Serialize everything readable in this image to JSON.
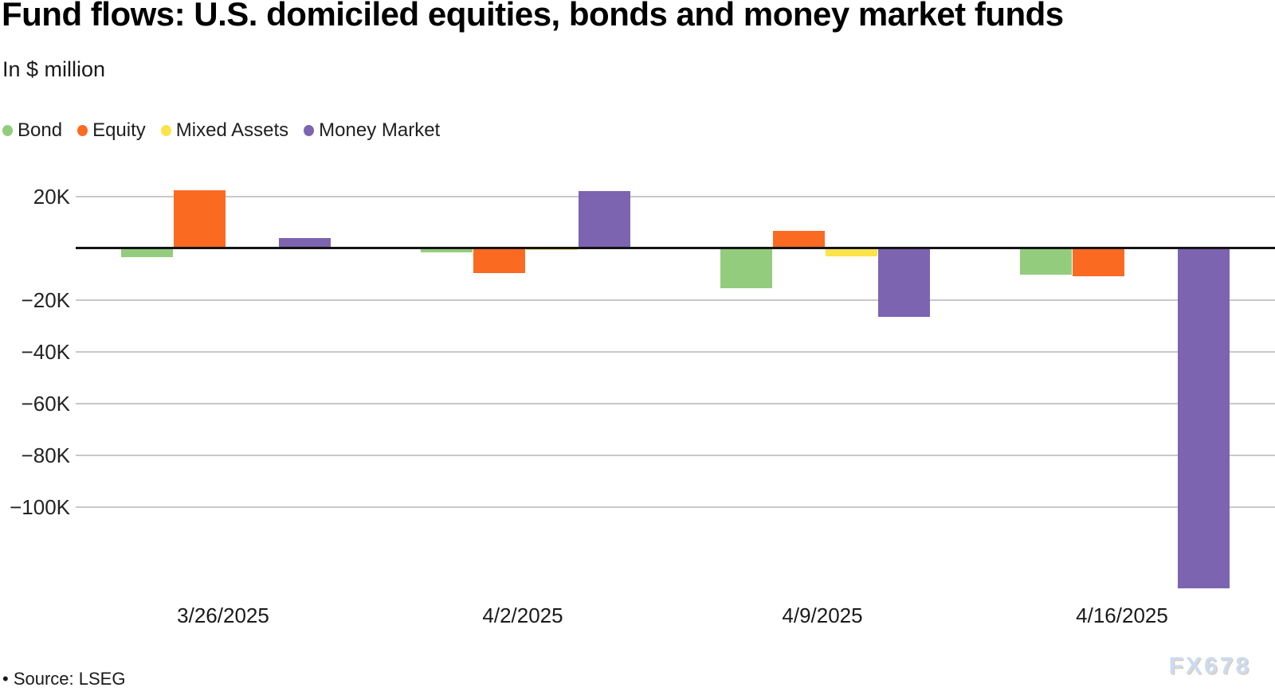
{
  "header": {
    "title": "Fund flows: U.S. domiciled equities, bonds and money market funds",
    "subtitle": "In $ million"
  },
  "chart_data": {
    "type": "bar",
    "title": "Fund flows: U.S. domiciled equities, bonds and money market funds",
    "subtitle": "In $ million",
    "unit": "$ million",
    "categories": [
      "3/26/2025",
      "4/2/2025",
      "4/9/2025",
      "4/16/2025"
    ],
    "series": [
      {
        "name": "Bond",
        "color": "#94cc7e",
        "values": [
          -3400,
          -1600,
          -15400,
          -10400
        ]
      },
      {
        "name": "Equity",
        "color": "#fb6a21",
        "values": [
          22300,
          -9800,
          6700,
          -10900
        ]
      },
      {
        "name": "Mixed Assets",
        "color": "#fbe44b",
        "values": [
          -600,
          -900,
          -3200,
          0
        ]
      },
      {
        "name": "Money Market",
        "color": "#7c64b0",
        "values": [
          3800,
          21900,
          -26600,
          -131600
        ]
      }
    ],
    "y_ticks": [
      {
        "label": "20K",
        "value": 20000
      },
      {
        "label": "−20K",
        "value": -20000
      },
      {
        "label": "−40K",
        "value": -40000
      },
      {
        "label": "−60K",
        "value": -60000
      },
      {
        "label": "−80K",
        "value": -80000
      },
      {
        "label": "−100K",
        "value": -100000
      }
    ],
    "ylim": [
      -131600,
      28300
    ],
    "grid": true,
    "legend_position": "top-left",
    "grid_color": "#c9c9c9",
    "zero_line_color": "#141414"
  },
  "footer": {
    "source": "• Source: LSEG",
    "watermark": "FX678"
  }
}
